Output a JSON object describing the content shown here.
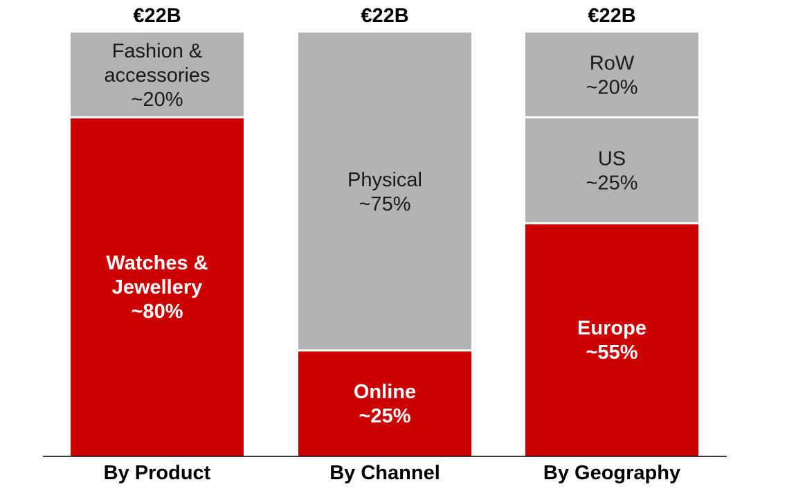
{
  "chart_data": {
    "type": "bar",
    "stacked": true,
    "normalized": true,
    "categories": [
      "By Product",
      "By Channel",
      "By Geography"
    ],
    "totals": [
      "€22B",
      "€22B",
      "€22B"
    ],
    "grid": false,
    "legend": "none",
    "colors": {
      "highlight": "#cc0000",
      "neutral": "#b3b3b3"
    },
    "stacks": [
      {
        "category": "By Product",
        "segments": [
          {
            "lines": [
              "Watches &",
              "Jewellery",
              "~80%"
            ],
            "value": 80,
            "color": "highlight"
          },
          {
            "lines": [
              "Fashion &",
              "accessories",
              "~20%"
            ],
            "value": 20,
            "color": "neutral"
          }
        ]
      },
      {
        "category": "By Channel",
        "segments": [
          {
            "lines": [
              "Online",
              "~25%"
            ],
            "value": 25,
            "color": "highlight"
          },
          {
            "lines": [
              "Physical",
              "~75%"
            ],
            "value": 75,
            "color": "neutral"
          }
        ]
      },
      {
        "category": "By Geography",
        "segments": [
          {
            "lines": [
              "Europe",
              "~55%"
            ],
            "value": 55,
            "color": "highlight"
          },
          {
            "lines": [
              "US",
              "~25%"
            ],
            "value": 25,
            "color": "neutral"
          },
          {
            "lines": [
              "RoW",
              "~20%"
            ],
            "value": 20,
            "color": "neutral"
          }
        ]
      }
    ]
  }
}
